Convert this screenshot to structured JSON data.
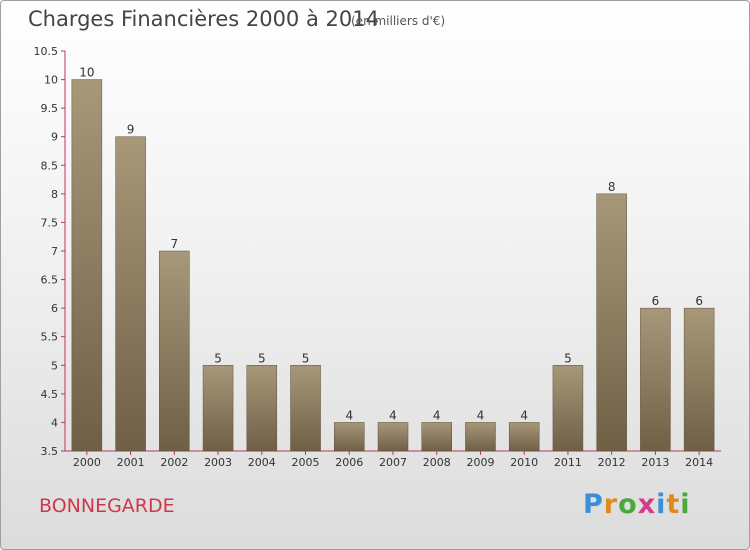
{
  "header": {
    "title": "Charges Financières 2000 à 2014",
    "subtitle": "(en milliers d'€)"
  },
  "footer": {
    "commune": "BONNEGARDE",
    "logo_letters": [
      "P",
      "r",
      "o",
      "x",
      "i",
      "t",
      "i"
    ],
    "logo_colors": [
      "#3a8fd6",
      "#e08a1e",
      "#4aa83c",
      "#d63a8a",
      "#3a8fd6",
      "#e08a1e",
      "#4aa83c"
    ]
  },
  "chart_data": {
    "type": "bar",
    "categories": [
      "2000",
      "2001",
      "2002",
      "2003",
      "2004",
      "2005",
      "2006",
      "2007",
      "2008",
      "2009",
      "2010",
      "2011",
      "2012",
      "2013",
      "2014"
    ],
    "values": [
      10,
      9,
      7,
      5,
      5,
      5,
      4,
      4,
      4,
      4,
      4,
      5,
      8,
      6,
      6
    ],
    "value_labels": [
      "10",
      "9",
      "7",
      "5",
      "5",
      "5",
      "4",
      "4",
      "4",
      "4",
      "4",
      "5",
      "8",
      "6",
      "6"
    ],
    "yticks": [
      "3.5",
      "4",
      "4.5",
      "5",
      "5.5",
      "6",
      "6.5",
      "7",
      "7.5",
      "8",
      "8.5",
      "9",
      "9.5",
      "10",
      "10.5"
    ],
    "ylim": [
      3.5,
      10.5
    ],
    "grid": false,
    "bar_color": "#8b7b60",
    "axis_color": "#c0335a"
  }
}
